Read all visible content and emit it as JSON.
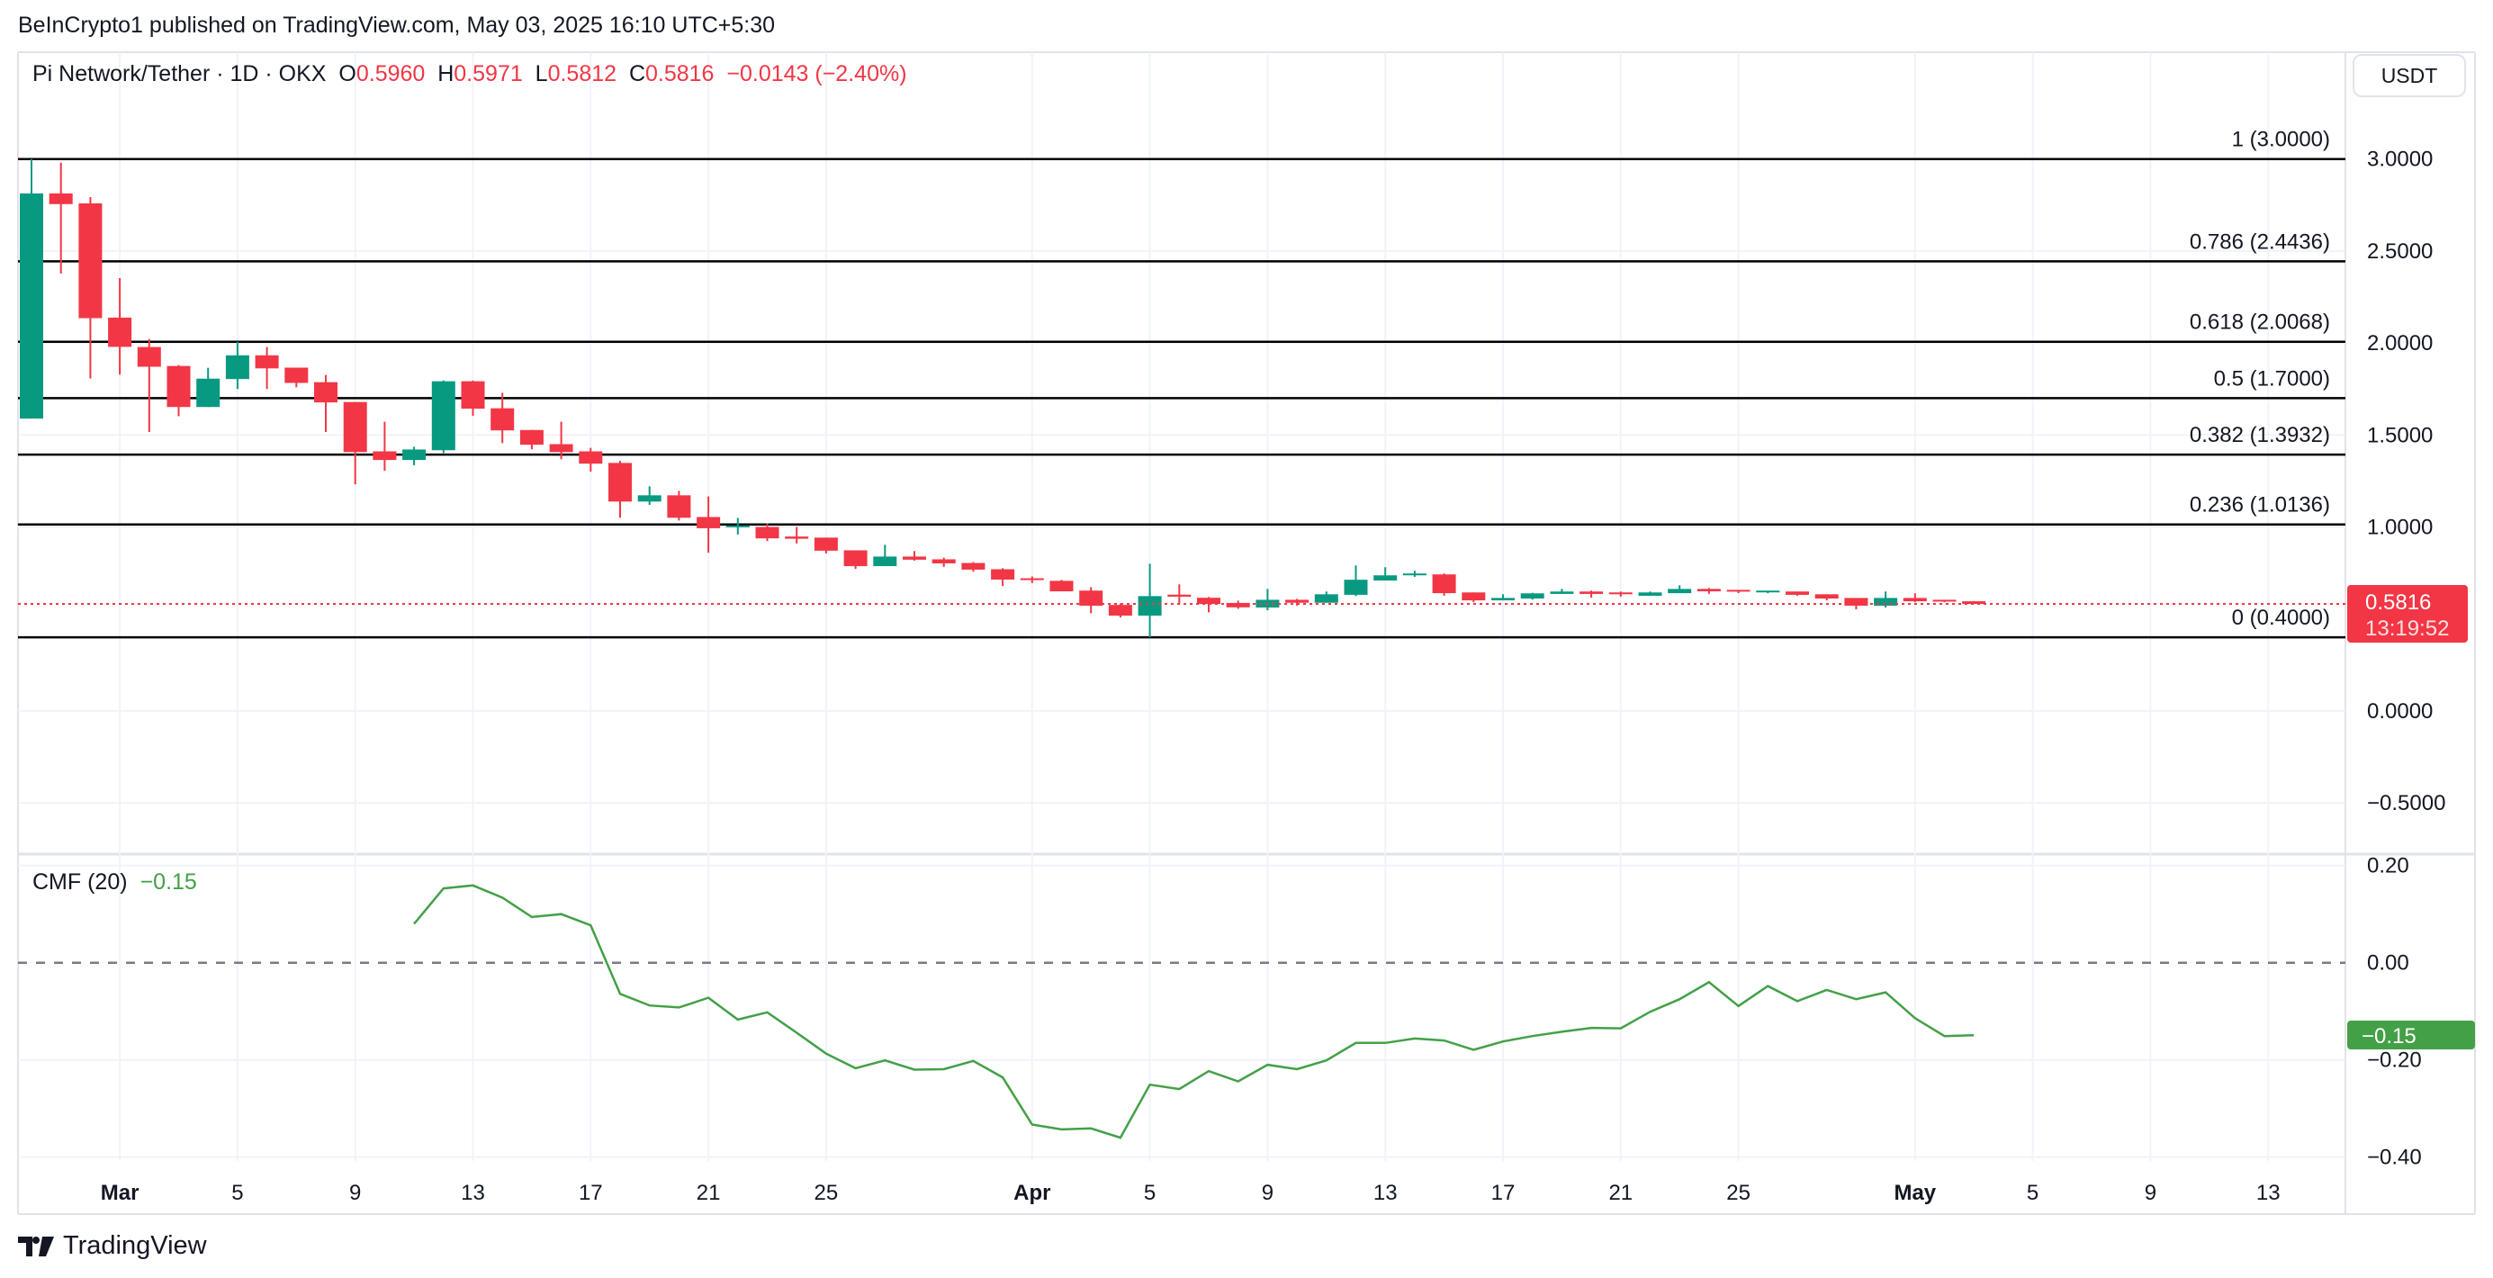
{
  "header": {
    "published": "BeInCrypto1 published on TradingView.com, May 03, 2025 16:10 UTC+5:30",
    "symbol": "Pi Network/Tether · 1D · OKX",
    "o_label": "O",
    "o": "0.5960",
    "h_label": "H",
    "h": "0.5971",
    "l_label": "L",
    "l": "0.5812",
    "c_label": "C",
    "c": "0.5816",
    "change": "−0.0143 (−2.40%)"
  },
  "currency_button": "USDT",
  "price_badge": {
    "value": "0.5816",
    "countdown": "13:19:52",
    "color": "#f23645"
  },
  "cmf_badge": {
    "value": "−0.15",
    "color": "#43a047"
  },
  "cmf_legend": {
    "name": "CMF (20)",
    "value": "−0.15"
  },
  "brand": "TradingView",
  "colors": {
    "up": "#089981",
    "down": "#f23645",
    "cmf": "#43a047",
    "fib": "#000000"
  },
  "chart_data": [
    {
      "type": "candlestick",
      "ylim": [
        -0.7,
        3.35
      ],
      "y_ticks": [
        "3.0000",
        "2.5000",
        "2.0000",
        "1.5000",
        "1.0000",
        "0.0000",
        "−0.5000"
      ],
      "y_tick_values": [
        3.0,
        2.5,
        2.0,
        1.5,
        1.0,
        0.0,
        -0.5
      ],
      "x_ticks": [
        {
          "label": "Mar",
          "date": "2025-03-01",
          "bold": true
        },
        {
          "label": "5",
          "date": "2025-03-05"
        },
        {
          "label": "9",
          "date": "2025-03-09"
        },
        {
          "label": "13",
          "date": "2025-03-13"
        },
        {
          "label": "17",
          "date": "2025-03-17"
        },
        {
          "label": "21",
          "date": "2025-03-21"
        },
        {
          "label": "25",
          "date": "2025-03-25"
        },
        {
          "label": "Apr",
          "date": "2025-04-01",
          "bold": true
        },
        {
          "label": "5",
          "date": "2025-04-05"
        },
        {
          "label": "9",
          "date": "2025-04-09"
        },
        {
          "label": "13",
          "date": "2025-04-13"
        },
        {
          "label": "17",
          "date": "2025-04-17"
        },
        {
          "label": "21",
          "date": "2025-04-21"
        },
        {
          "label": "25",
          "date": "2025-04-25"
        },
        {
          "label": "May",
          "date": "2025-05-01",
          "bold": true
        },
        {
          "label": "5",
          "date": "2025-05-05"
        },
        {
          "label": "9",
          "date": "2025-05-09"
        },
        {
          "label": "13",
          "date": "2025-05-13"
        }
      ],
      "first_date": "2025-02-26",
      "ohlc": [
        [
          1.589,
          3.0,
          1.589,
          2.813
        ],
        [
          2.813,
          2.981,
          2.378,
          2.755
        ],
        [
          2.759,
          2.793,
          1.807,
          2.135
        ],
        [
          2.138,
          2.353,
          1.828,
          1.979
        ],
        [
          1.978,
          2.021,
          1.516,
          1.871
        ],
        [
          1.875,
          1.88,
          1.602,
          1.652
        ],
        [
          1.652,
          1.865,
          1.652,
          1.806
        ],
        [
          1.804,
          2.007,
          1.75,
          1.933
        ],
        [
          1.933,
          1.978,
          1.75,
          1.862
        ],
        [
          1.866,
          1.866,
          1.759,
          1.783
        ],
        [
          1.787,
          1.826,
          1.516,
          1.677
        ],
        [
          1.679,
          1.679,
          1.232,
          1.407
        ],
        [
          1.411,
          1.572,
          1.305,
          1.364
        ],
        [
          1.364,
          1.436,
          1.335,
          1.421
        ],
        [
          1.417,
          1.796,
          1.402,
          1.792
        ],
        [
          1.792,
          1.796,
          1.604,
          1.643
        ],
        [
          1.645,
          1.729,
          1.456,
          1.525
        ],
        [
          1.527,
          1.527,
          1.422,
          1.447
        ],
        [
          1.45,
          1.572,
          1.368,
          1.407
        ],
        [
          1.411,
          1.43,
          1.301,
          1.344
        ],
        [
          1.348,
          1.359,
          1.05,
          1.138
        ],
        [
          1.138,
          1.221,
          1.12,
          1.172
        ],
        [
          1.172,
          1.196,
          1.035,
          1.05
        ],
        [
          1.054,
          1.166,
          0.86,
          0.993
        ],
        [
          1.0,
          1.049,
          0.959,
          1.008
        ],
        [
          1.0,
          1.019,
          0.923,
          0.938
        ],
        [
          0.948,
          1.0,
          0.91,
          0.936
        ],
        [
          0.942,
          0.942,
          0.856,
          0.871
        ],
        [
          0.873,
          0.873,
          0.772,
          0.787
        ],
        [
          0.787,
          0.903,
          0.787,
          0.839
        ],
        [
          0.839,
          0.869,
          0.817,
          0.822
        ],
        [
          0.824,
          0.833,
          0.783,
          0.802
        ],
        [
          0.804,
          0.809,
          0.757,
          0.768
        ],
        [
          0.77,
          0.776,
          0.679,
          0.714
        ],
        [
          0.721,
          0.731,
          0.695,
          0.714
        ],
        [
          0.707,
          0.712,
          0.65,
          0.65
        ],
        [
          0.654,
          0.673,
          0.531,
          0.572
        ],
        [
          0.576,
          0.583,
          0.508,
          0.518
        ],
        [
          0.518,
          0.8,
          0.4,
          0.624
        ],
        [
          0.632,
          0.688,
          0.583,
          0.621
        ],
        [
          0.615,
          0.619,
          0.536,
          0.581
        ],
        [
          0.587,
          0.6,
          0.555,
          0.563
        ],
        [
          0.562,
          0.663,
          0.547,
          0.604
        ],
        [
          0.604,
          0.609,
          0.572,
          0.588
        ],
        [
          0.588,
          0.649,
          0.588,
          0.634
        ],
        [
          0.631,
          0.791,
          0.624,
          0.713
        ],
        [
          0.709,
          0.781,
          0.709,
          0.737
        ],
        [
          0.739,
          0.762,
          0.729,
          0.747
        ],
        [
          0.742,
          0.747,
          0.626,
          0.64
        ],
        [
          0.644,
          0.644,
          0.591,
          0.601
        ],
        [
          0.601,
          0.634,
          0.601,
          0.614
        ],
        [
          0.611,
          0.642,
          0.605,
          0.639
        ],
        [
          0.636,
          0.663,
          0.636,
          0.649
        ],
        [
          0.649,
          0.654,
          0.616,
          0.636
        ],
        [
          0.644,
          0.649,
          0.621,
          0.636
        ],
        [
          0.626,
          0.649,
          0.626,
          0.644
        ],
        [
          0.64,
          0.683,
          0.64,
          0.663
        ],
        [
          0.663,
          0.668,
          0.636,
          0.65
        ],
        [
          0.658,
          0.658,
          0.64,
          0.65
        ],
        [
          0.645,
          0.654,
          0.64,
          0.654
        ],
        [
          0.649,
          0.649,
          0.626,
          0.631
        ],
        [
          0.634,
          0.634,
          0.601,
          0.611
        ],
        [
          0.614,
          0.614,
          0.552,
          0.572
        ],
        [
          0.572,
          0.649,
          0.562,
          0.614
        ],
        [
          0.614,
          0.639,
          0.591,
          0.596
        ],
        [
          0.604,
          0.604,
          0.591,
          0.596
        ],
        [
          0.596,
          0.5971,
          0.5812,
          0.5816
        ]
      ],
      "last_price": 0.5816,
      "fib_levels": [
        {
          "label": "1 (3.0000)",
          "value": 3.0
        },
        {
          "label": "0.786 (2.4436)",
          "value": 2.4436
        },
        {
          "label": "0.618 (2.0068)",
          "value": 2.0068
        },
        {
          "label": "0.5 (1.7000)",
          "value": 1.7
        },
        {
          "label": "0.382 (1.3932)",
          "value": 1.3932
        },
        {
          "label": "0.236 (1.0136)",
          "value": 1.0136
        },
        {
          "label": "0 (0.4000)",
          "value": 0.4
        }
      ]
    },
    {
      "type": "line",
      "name": "CMF (20)",
      "ylim": [
        -0.42,
        0.2
      ],
      "y_ticks": [
        "0.20",
        "0.00",
        "−0.20",
        "−0.40"
      ],
      "y_tick_values": [
        0.2,
        0.0,
        -0.2,
        -0.4
      ],
      "zero_line": 0.0,
      "first_date": "2025-03-11",
      "values": [
        0.08,
        0.153,
        0.159,
        0.134,
        0.094,
        0.1,
        0.077,
        -0.064,
        -0.088,
        -0.092,
        -0.072,
        -0.117,
        -0.102,
        -0.144,
        -0.187,
        -0.217,
        -0.201,
        -0.22,
        -0.219,
        -0.202,
        -0.236,
        -0.333,
        -0.343,
        -0.341,
        -0.36,
        -0.251,
        -0.26,
        -0.223,
        -0.244,
        -0.21,
        -0.219,
        -0.201,
        -0.165,
        -0.165,
        -0.156,
        -0.16,
        -0.179,
        -0.162,
        -0.151,
        -0.142,
        -0.134,
        -0.135,
        -0.101,
        -0.075,
        -0.04,
        -0.089,
        -0.048,
        -0.079,
        -0.056,
        -0.075,
        -0.061,
        -0.114,
        -0.151,
        -0.149
      ]
    }
  ]
}
